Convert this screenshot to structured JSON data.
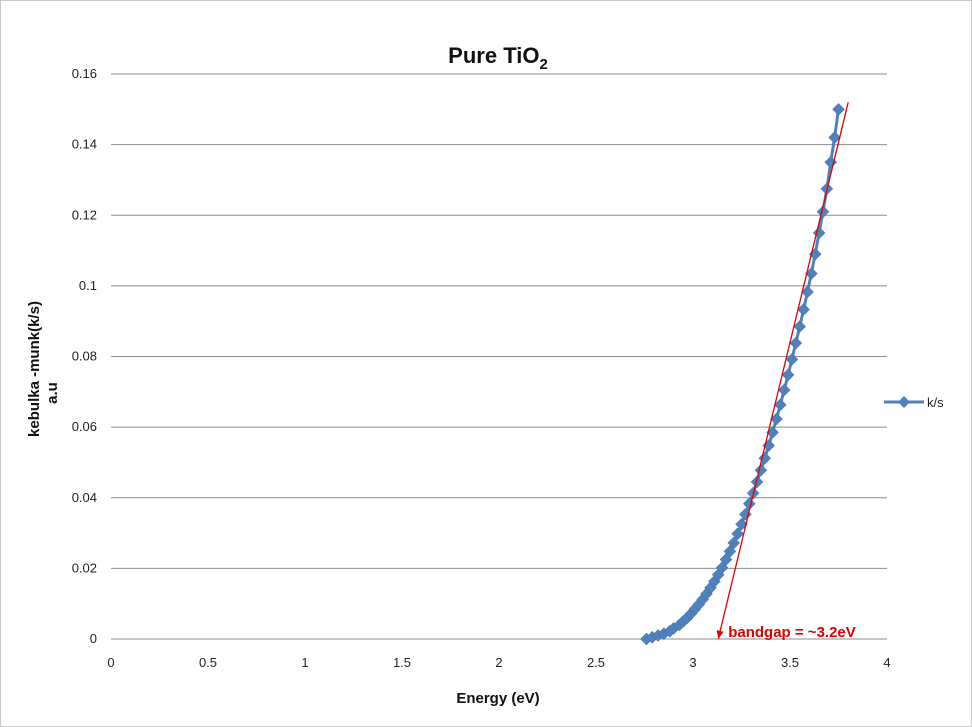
{
  "chart_data": {
    "type": "scatter",
    "title": "Pure TiO",
    "title_subscript": "2",
    "xlabel": "Energy (eV)",
    "ylabel_line1": "kebulka -munk(k/s)",
    "ylabel_line2": "a.u",
    "xlim": [
      0,
      4
    ],
    "ylim": [
      0,
      0.16
    ],
    "x_ticks": [
      "0",
      "0.5",
      "1",
      "1.5",
      "2",
      "2.5",
      "3",
      "3.5",
      "4"
    ],
    "y_ticks": [
      "0",
      "0.02",
      "0.04",
      "0.06",
      "0.08",
      "0.1",
      "0.12",
      "0.14",
      "0.16"
    ],
    "grid": "horizontal",
    "legend_position": "right",
    "series": [
      {
        "name": "k/s",
        "color": "#4f81bd",
        "marker": "diamond",
        "x": [
          2.76,
          2.79,
          2.82,
          2.85,
          2.88,
          2.9,
          2.93,
          2.95,
          2.97,
          2.99,
          3.01,
          3.03,
          3.05,
          3.07,
          3.09,
          3.11,
          3.13,
          3.15,
          3.17,
          3.19,
          3.21,
          3.23,
          3.25,
          3.27,
          3.29,
          3.31,
          3.33,
          3.35,
          3.37,
          3.39,
          3.41,
          3.43,
          3.45,
          3.47,
          3.49,
          3.51,
          3.53,
          3.55,
          3.57,
          3.59,
          3.61,
          3.63,
          3.65,
          3.67,
          3.69,
          3.71,
          3.73,
          3.75
        ],
        "y": [
          0.0,
          0.0005,
          0.001,
          0.0015,
          0.0022,
          0.003,
          0.004,
          0.005,
          0.006,
          0.0072,
          0.0085,
          0.0098,
          0.0112,
          0.0128,
          0.0145,
          0.0163,
          0.0182,
          0.0202,
          0.0225,
          0.0248,
          0.0272,
          0.0298,
          0.0325,
          0.0353,
          0.0383,
          0.0413,
          0.0445,
          0.0478,
          0.0512,
          0.0548,
          0.0585,
          0.0623,
          0.0663,
          0.0705,
          0.0748,
          0.0792,
          0.0838,
          0.0885,
          0.0933,
          0.0983,
          0.1035,
          0.109,
          0.115,
          0.121,
          0.1275,
          0.135,
          0.142,
          0.15
        ]
      }
    ],
    "annotation": {
      "text": "bandgap = ~3.2eV",
      "color": "#e00000",
      "line_start": [
        3.8,
        0.152
      ],
      "line_end": [
        3.13,
        0.0
      ]
    }
  }
}
